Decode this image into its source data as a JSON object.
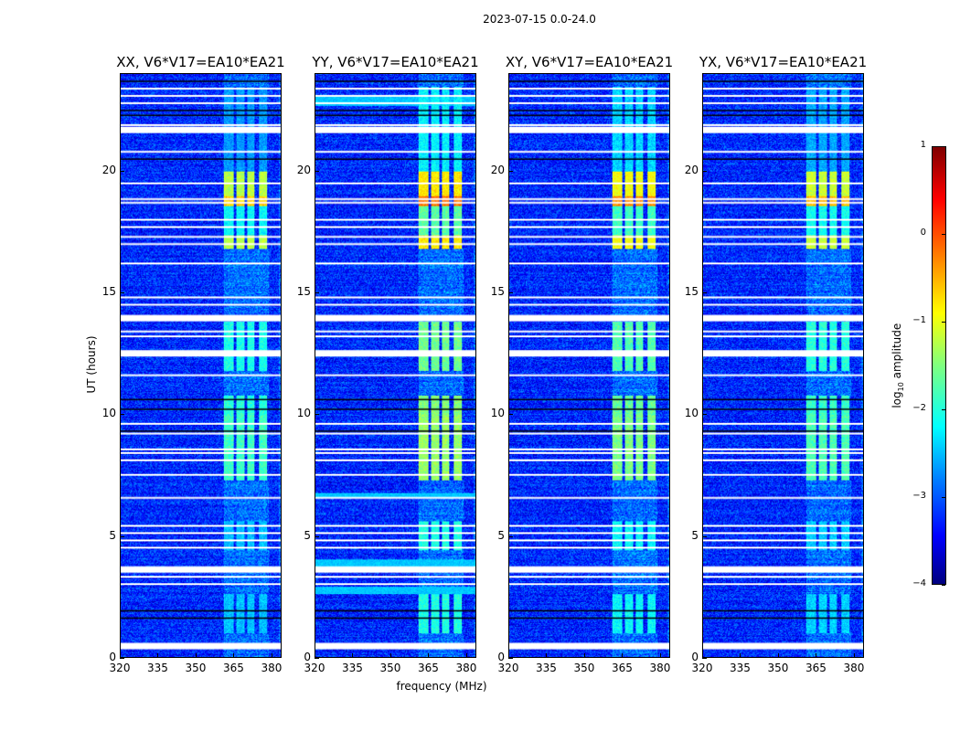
{
  "chart_data": {
    "type": "heatmap",
    "title": "2023-07-15 0.0-24.0",
    "xlabel": "frequency (MHz)",
    "ylabel": "UT (hours)",
    "xlim": [
      320,
      384
    ],
    "ylim": [
      0,
      24
    ],
    "xticks": [
      320,
      335,
      350,
      365,
      380
    ],
    "yticks": [
      0,
      5,
      10,
      15,
      20
    ],
    "panels": [
      {
        "title": "XX, V6*V17=EA10*EA21",
        "strength": 0.85
      },
      {
        "title": "YY, V6*V17=EA10*EA21",
        "strength": 1.15
      },
      {
        "title": "XY, V6*V17=EA10*EA21",
        "strength": 1.05
      },
      {
        "title": "YX, V6*V17=EA10*EA21",
        "strength": 0.9
      }
    ],
    "colorbar": {
      "label_main": "log",
      "label_sub": "10",
      "label_rest": " amplitude",
      "range": [
        -4,
        1
      ],
      "ticks": [
        1,
        0,
        -1,
        -2,
        -3,
        -4
      ],
      "colormap": "jet"
    },
    "background_level": -3.2,
    "flagged_hours": [
      0.45,
      3.0,
      3.3,
      3.6,
      4.5,
      4.8,
      5.1,
      5.4,
      6.55,
      7.5,
      8.1,
      8.4,
      8.55,
      9.2,
      9.6,
      11.6,
      12.5,
      13.2,
      13.4,
      13.95,
      14.5,
      14.8,
      16.2,
      17.0,
      17.3,
      17.7,
      18.0,
      18.7,
      18.85,
      19.5,
      20.8,
      21.7,
      21.9,
      22.8,
      23.1,
      23.4
    ],
    "thick_flagged_hours": [
      0.45,
      3.6,
      12.5,
      13.95,
      21.7
    ],
    "dark_hours": [
      1.6,
      1.9,
      9.3,
      10.2,
      10.6,
      20.5,
      22.3,
      22.5,
      23.7
    ],
    "rfi_channels_mhz": [
      [
        361,
        365
      ],
      [
        366,
        369.5
      ],
      [
        370.5,
        373.5
      ],
      [
        375,
        378.5
      ]
    ],
    "rfi_episodes": [
      {
        "hours": [
          1.0,
          2.6
        ],
        "level": -2.2
      },
      {
        "hours": [
          4.4,
          5.6
        ],
        "level": -2.2
      },
      {
        "hours": [
          7.3,
          10.0
        ],
        "level": -1.6
      },
      {
        "hours": [
          10.0,
          10.8
        ],
        "level": -1.7
      },
      {
        "hours": [
          11.8,
          13.8
        ],
        "level": -1.8
      },
      {
        "hours": [
          16.8,
          17.4
        ],
        "level": -1.0
      },
      {
        "hours": [
          17.4,
          18.6
        ],
        "level": -1.9
      },
      {
        "hours": [
          18.6,
          19.0
        ],
        "level": -0.4
      },
      {
        "hours": [
          19.0,
          20.0
        ],
        "level": -1.0
      },
      {
        "hours": [
          20.0,
          23.5
        ],
        "level": -2.4
      }
    ]
  }
}
